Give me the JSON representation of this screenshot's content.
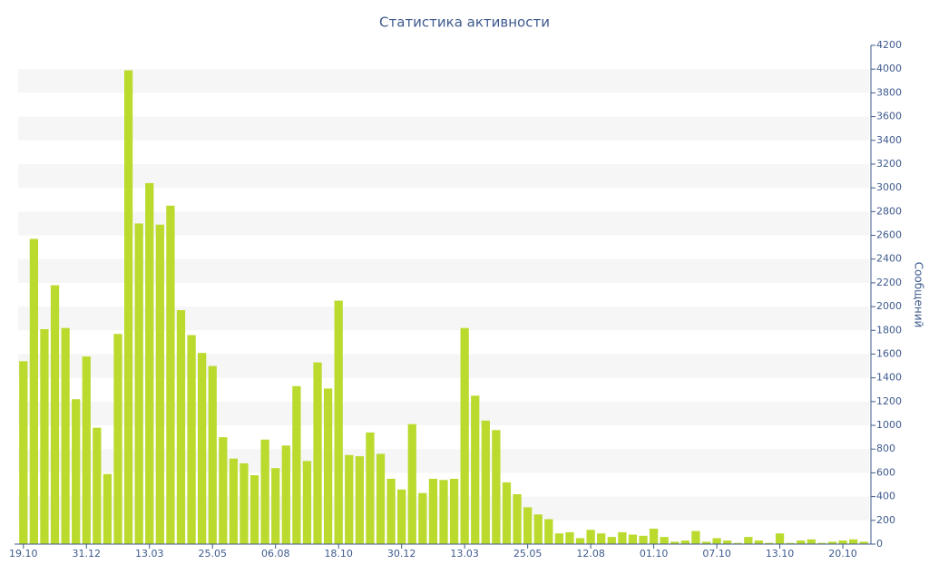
{
  "chart_data": {
    "type": "bar",
    "title": "Статистика активности",
    "y_label": "Сообщений",
    "categories": [
      "19.10",
      null,
      null,
      null,
      null,
      null,
      "31.12",
      null,
      null,
      null,
      null,
      null,
      "13.03",
      null,
      null,
      null,
      null,
      null,
      "25.05",
      null,
      null,
      null,
      null,
      null,
      "06.08",
      null,
      null,
      null,
      null,
      null,
      "18.10",
      null,
      null,
      null,
      null,
      null,
      "30.12",
      null,
      null,
      null,
      null,
      null,
      "13.03",
      null,
      null,
      null,
      null,
      null,
      "25.05",
      null,
      null,
      null,
      null,
      null,
      "12.08",
      null,
      null,
      null,
      null,
      null,
      "01.10",
      null,
      null,
      null,
      null,
      null,
      "07.10",
      null,
      null,
      null,
      null,
      null,
      "13.10",
      null,
      null,
      null,
      null,
      null,
      "20.10",
      null,
      null
    ],
    "values": [
      1540,
      2570,
      1810,
      2180,
      1820,
      1220,
      1580,
      980,
      590,
      1770,
      3990,
      2700,
      3040,
      2690,
      2850,
      1970,
      1760,
      1610,
      1500,
      900,
      720,
      680,
      580,
      880,
      640,
      830,
      1330,
      700,
      1530,
      1310,
      2050,
      750,
      740,
      940,
      760,
      550,
      460,
      1010,
      430,
      550,
      540,
      550,
      1820,
      1250,
      1040,
      960,
      520,
      420,
      310,
      250,
      210,
      90,
      100,
      50,
      120,
      90,
      60,
      100,
      80,
      70,
      130,
      60,
      20,
      30,
      110,
      20,
      50,
      30,
      10,
      60,
      30,
      10,
      90,
      10,
      30,
      40,
      10,
      20,
      30,
      40,
      20
    ],
    "color": "#bada2e",
    "ylim": [
      0,
      4200
    ],
    "yticks": [
      0,
      200,
      400,
      600,
      800,
      1000,
      1200,
      1400,
      1600,
      1800,
      2000,
      2200,
      2400,
      2600,
      2800,
      3000,
      3200,
      3400,
      3600,
      3800,
      4000,
      4200
    ],
    "grid": true
  }
}
